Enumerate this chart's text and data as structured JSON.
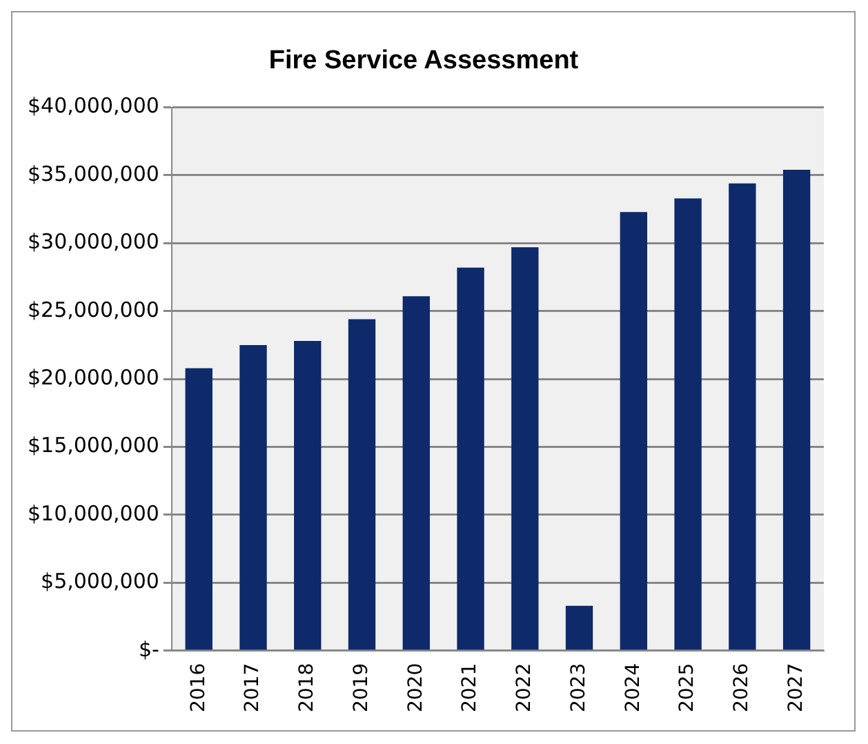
{
  "chart_data": {
    "type": "bar",
    "title": "Fire Service Assessment",
    "categories": [
      "2016",
      "2017",
      "2018",
      "2019",
      "2020",
      "2021",
      "2022",
      "2023",
      "2024",
      "2025",
      "2026",
      "2027"
    ],
    "values": [
      20800000,
      22500000,
      22800000,
      24400000,
      26100000,
      28200000,
      29700000,
      3300000,
      32300000,
      33300000,
      34400000,
      35400000
    ],
    "color": "#0e2a6b",
    "ylim": [
      0,
      40000000
    ],
    "yticks": [
      {
        "value": 0,
        "label": "$-"
      },
      {
        "value": 5000000,
        "label": "$5,000,000"
      },
      {
        "value": 10000000,
        "label": "$10,000,000"
      },
      {
        "value": 15000000,
        "label": "$15,000,000"
      },
      {
        "value": 20000000,
        "label": "$20,000,000"
      },
      {
        "value": 25000000,
        "label": "$25,000,000"
      },
      {
        "value": 30000000,
        "label": "$30,000,000"
      },
      {
        "value": 35000000,
        "label": "$35,000,000"
      },
      {
        "value": 40000000,
        "label": "$40,000,000"
      }
    ],
    "grid": "y"
  }
}
